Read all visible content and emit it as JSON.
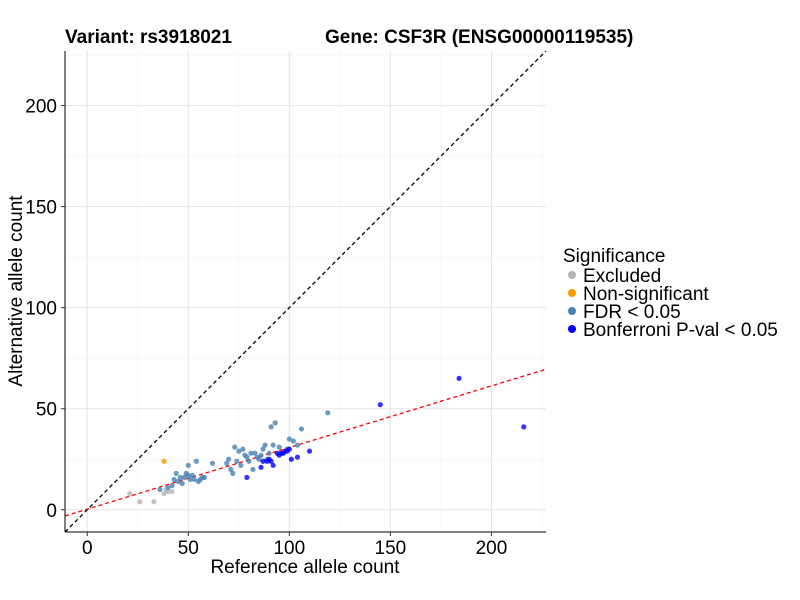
{
  "chart_data": {
    "type": "scatter",
    "title_left": "Variant: rs3918021",
    "title_right": "Gene: CSF3R (ENSG00000119535)",
    "xlabel": "Reference allele count",
    "ylabel": "Alternative allele count",
    "xlim": [
      -11,
      227
    ],
    "ylim": [
      -11,
      227
    ],
    "xticks": [
      0,
      50,
      100,
      150,
      200
    ],
    "yticks": [
      0,
      50,
      100,
      150,
      200
    ],
    "grid": true,
    "legend": {
      "title": "Significance",
      "position": "right",
      "items": [
        {
          "label": "Excluded",
          "color": "#b3b3b3"
        },
        {
          "label": "Non-significant",
          "color": "#ff9900"
        },
        {
          "label": "FDR < 0.05",
          "color": "#4682b4"
        },
        {
          "label": "Bonferroni P-val < 0.05",
          "color": "#0000ff"
        }
      ]
    },
    "reference_lines": [
      {
        "kind": "identity",
        "slope": 1,
        "intercept": 0,
        "color": "#000000",
        "style": "dashed"
      },
      {
        "kind": "fit",
        "slope": 0.305,
        "intercept": 0.3,
        "color": "#ff0000",
        "style": "dashed"
      }
    ],
    "series": [
      {
        "name": "Excluded",
        "color": "#b3b3b3",
        "points": [
          [
            21,
            8
          ],
          [
            26,
            4
          ],
          [
            33,
            4
          ],
          [
            38,
            8
          ],
          [
            39,
            10
          ],
          [
            40,
            9
          ],
          [
            42,
            9
          ]
        ]
      },
      {
        "name": "Non-significant",
        "color": "#ff9900",
        "points": [
          [
            38,
            24
          ]
        ]
      },
      {
        "name": "FDR < 0.05",
        "color": "#4682b4",
        "points": [
          [
            36,
            10
          ],
          [
            40,
            11
          ],
          [
            42,
            12
          ],
          [
            43,
            15
          ],
          [
            44,
            18
          ],
          [
            45,
            14
          ],
          [
            46,
            16
          ],
          [
            47,
            13
          ],
          [
            48,
            16
          ],
          [
            49,
            18
          ],
          [
            50,
            22
          ],
          [
            50,
            17
          ],
          [
            51,
            15
          ],
          [
            52,
            17
          ],
          [
            53,
            15
          ],
          [
            54,
            24
          ],
          [
            55,
            14
          ],
          [
            56,
            15
          ],
          [
            57,
            16
          ],
          [
            58,
            16
          ],
          [
            62,
            23
          ],
          [
            69,
            23
          ],
          [
            70,
            25
          ],
          [
            71,
            20
          ],
          [
            72,
            18
          ],
          [
            73,
            31
          ],
          [
            74,
            24
          ],
          [
            75,
            29
          ],
          [
            76,
            22
          ],
          [
            77,
            30
          ],
          [
            78,
            27
          ],
          [
            79,
            26
          ],
          [
            80,
            24
          ],
          [
            81,
            28
          ],
          [
            82,
            20
          ],
          [
            83,
            28
          ],
          [
            84,
            26
          ],
          [
            85,
            25
          ],
          [
            86,
            27
          ],
          [
            87,
            30
          ],
          [
            88,
            32
          ],
          [
            89,
            25
          ],
          [
            90,
            28
          ],
          [
            91,
            41
          ],
          [
            92,
            32
          ],
          [
            93,
            43
          ],
          [
            95,
            31
          ],
          [
            97,
            28
          ],
          [
            99,
            30
          ],
          [
            100,
            35
          ],
          [
            102,
            34
          ],
          [
            104,
            32
          ],
          [
            106,
            40
          ],
          [
            119,
            48
          ]
        ]
      },
      {
        "name": "Bonferroni P-val < 0.05",
        "color": "#0000ff",
        "points": [
          [
            79,
            16
          ],
          [
            86,
            21
          ],
          [
            87,
            24
          ],
          [
            89,
            24
          ],
          [
            90,
            25
          ],
          [
            91,
            24
          ],
          [
            92,
            22
          ],
          [
            94,
            28
          ],
          [
            95,
            27
          ],
          [
            96,
            28
          ],
          [
            97,
            28
          ],
          [
            98,
            29
          ],
          [
            99,
            29
          ],
          [
            100,
            30
          ],
          [
            101,
            25
          ],
          [
            104,
            26
          ],
          [
            110,
            29
          ],
          [
            145,
            52
          ],
          [
            184,
            65
          ],
          [
            216,
            41
          ]
        ]
      }
    ]
  }
}
